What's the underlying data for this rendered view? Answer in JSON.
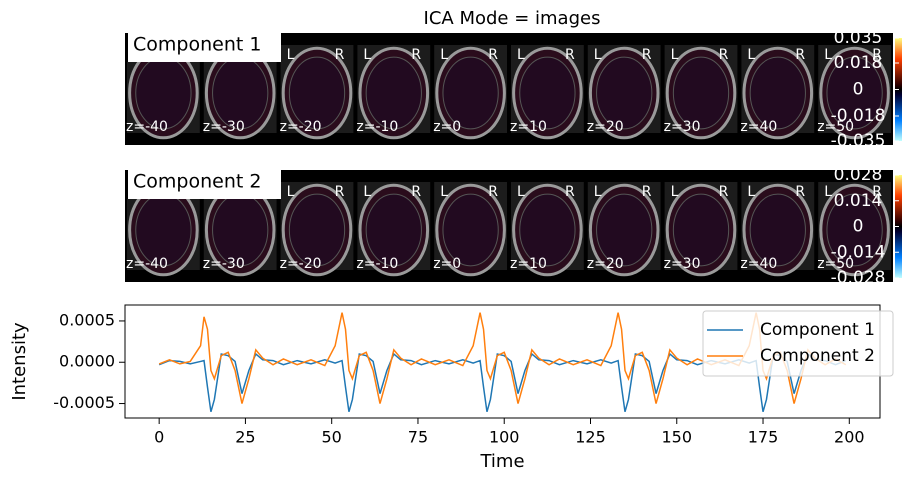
{
  "title": "ICA Mode = images",
  "chart_data": [
    {
      "type": "image",
      "title": "Component 1",
      "slice_labels": [
        "z=-40",
        "z=-30",
        "z=-20",
        "z=-10",
        "z=0",
        "z=10",
        "z=20",
        "z=30",
        "z=40",
        "z=50"
      ],
      "orientation_labels": [
        "L",
        "R"
      ],
      "cmap": "cold_hot",
      "ylim": [
        -0.035,
        0.035
      ],
      "yticks": [
        0.035,
        0.018,
        0,
        -0.018,
        -0.035
      ]
    },
    {
      "type": "image",
      "title": "Component 2",
      "slice_labels": [
        "z=-40",
        "z=-30",
        "z=-20",
        "z=-10",
        "z=0",
        "z=10",
        "z=20",
        "z=30",
        "z=40",
        "z=50"
      ],
      "orientation_labels": [
        "L",
        "R"
      ],
      "cmap": "cold_hot",
      "ylim": [
        -0.028,
        0.028
      ],
      "yticks": [
        0.028,
        0.014,
        0,
        -0.014,
        -0.028
      ]
    },
    {
      "type": "line",
      "xlabel": "Time",
      "ylabel": "Intensity",
      "x": [
        0,
        3,
        6,
        9,
        12,
        13,
        14,
        15,
        16,
        18,
        20,
        22,
        24,
        26,
        28,
        30,
        33,
        36,
        40,
        44,
        48,
        51,
        53,
        54,
        55,
        56,
        58,
        60,
        62,
        64,
        66,
        68,
        70,
        73,
        76,
        80,
        84,
        88,
        91,
        93,
        94,
        95,
        96,
        98,
        100,
        102,
        104,
        106,
        108,
        110,
        113,
        116,
        120,
        124,
        128,
        131,
        133,
        134,
        135,
        136,
        138,
        140,
        142,
        144,
        146,
        148,
        150,
        153,
        156,
        160,
        164,
        168,
        171,
        173,
        174,
        175,
        176,
        178,
        180,
        182,
        184,
        186,
        188,
        190,
        193,
        196,
        199
      ],
      "series": [
        {
          "name": "Component 1",
          "color": "#1f77b4",
          "values": [
            -3e-05,
            2e-05,
            1e-05,
            -2e-05,
            1e-05,
            2e-05,
            -0.0003,
            -0.0006,
            -0.00045,
            0.0001,
            8e-05,
            1e-05,
            -0.00038,
            -0.0001,
            0.0001,
            3e-05,
            2e-05,
            -3e-05,
            2e-05,
            -2e-05,
            3e-05,
            -1e-05,
            2e-05,
            -0.0003,
            -0.0006,
            -0.00045,
            0.0001,
            8e-05,
            1e-05,
            -0.00038,
            -0.0001,
            0.0001,
            3e-05,
            2e-05,
            -3e-05,
            2e-05,
            -2e-05,
            3e-05,
            -1e-05,
            2e-05,
            -0.0003,
            -0.0006,
            -0.00045,
            0.0001,
            8e-05,
            1e-05,
            -0.00038,
            -0.0001,
            0.0001,
            3e-05,
            2e-05,
            -3e-05,
            2e-05,
            -2e-05,
            3e-05,
            -1e-05,
            2e-05,
            -0.0003,
            -0.0006,
            -0.00045,
            0.0001,
            8e-05,
            1e-05,
            -0.00038,
            -0.0001,
            0.0001,
            3e-05,
            2e-05,
            -3e-05,
            2e-05,
            -2e-05,
            3e-05,
            -1e-05,
            2e-05,
            -0.0003,
            -0.0006,
            -0.00045,
            0.0001,
            8e-05,
            1e-05,
            -0.00038,
            -0.0001,
            0.0001,
            3e-05,
            2e-05,
            -3e-05,
            2e-05
          ]
        },
        {
          "name": "Component 2",
          "color": "#ff7f0e",
          "values": [
            -2e-05,
            3e-05,
            -2e-05,
            1e-05,
            0.0002,
            0.00055,
            0.0004,
            -0.0001,
            -0.0002,
            8e-05,
            0.00012,
            -0.0001,
            -0.0005,
            -0.0002,
            0.00015,
            5e-05,
            -3e-05,
            4e-05,
            -3e-05,
            3e-05,
            -4e-05,
            0.0002,
            0.0006,
            0.0004,
            -0.0001,
            -0.0002,
            8e-05,
            0.00012,
            -0.0001,
            -0.0005,
            -0.0002,
            0.00015,
            5e-05,
            -3e-05,
            4e-05,
            -3e-05,
            3e-05,
            -4e-05,
            0.0002,
            0.0006,
            0.0004,
            -0.0001,
            -0.0002,
            8e-05,
            0.00012,
            -0.0001,
            -0.0005,
            -0.0002,
            0.00015,
            5e-05,
            -3e-05,
            4e-05,
            -3e-05,
            3e-05,
            -4e-05,
            0.0002,
            0.0006,
            0.0004,
            -0.0001,
            -0.0002,
            8e-05,
            0.00012,
            -0.0001,
            -0.0005,
            -0.0002,
            0.00015,
            5e-05,
            -3e-05,
            4e-05,
            -3e-05,
            3e-05,
            -4e-05,
            0.0002,
            0.0006,
            0.0004,
            -0.0001,
            -0.0002,
            8e-05,
            0.00012,
            -0.0001,
            -0.0005,
            -0.0002,
            0.00015,
            5e-05,
            -3e-05,
            4e-05,
            -3e-05
          ]
        }
      ],
      "xlim": [
        -9.9,
        208.9
      ],
      "xticks": [
        0,
        25,
        50,
        75,
        100,
        125,
        150,
        175,
        200
      ],
      "ylim": [
        -0.000675,
        0.000693
      ],
      "yticks": [
        -0.0005,
        {
          "value": 0,
          "label": "0.0000"
        },
        0.0005
      ],
      "legend": "upper right"
    }
  ]
}
